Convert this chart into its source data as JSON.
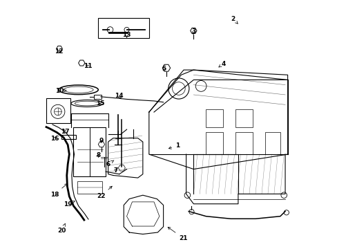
{
  "background_color": "#ffffff",
  "line_color": "#000000",
  "figure_width": 4.89,
  "figure_height": 3.6,
  "dpi": 100,
  "label_data": {
    "1": [
      0.535,
      0.415,
      0.49,
      0.4
    ],
    "2": [
      0.76,
      0.925,
      0.78,
      0.905
    ],
    "3": [
      0.6,
      0.875,
      0.598,
      0.862
    ],
    "4": [
      0.72,
      0.745,
      0.7,
      0.73
    ],
    "5": [
      0.48,
      0.725,
      0.473,
      0.71
    ],
    "6": [
      0.255,
      0.34,
      0.285,
      0.36
    ],
    "7": [
      0.285,
      0.315,
      0.295,
      0.33
    ],
    "8": [
      0.215,
      0.375,
      0.218,
      0.38
    ],
    "9": [
      0.228,
      0.435,
      0.224,
      0.418
    ],
    "10": [
      0.06,
      0.635,
      0.088,
      0.638
    ],
    "11": [
      0.172,
      0.735,
      0.158,
      0.745
    ],
    "12": [
      0.055,
      0.795,
      0.068,
      0.795
    ],
    "13": [
      0.33,
      0.862,
      0.33,
      0.848
    ],
    "14": [
      0.3,
      0.615,
      0.308,
      0.602
    ],
    "15": [
      0.222,
      0.585,
      0.218,
      0.585
    ],
    "16": [
      0.038,
      0.442,
      0.048,
      0.452
    ],
    "17": [
      0.082,
      0.472,
      0.072,
      0.48
    ],
    "18": [
      0.038,
      0.218,
      0.098,
      0.268
    ],
    "19": [
      0.092,
      0.178,
      0.122,
      0.192
    ],
    "20": [
      0.068,
      0.072,
      0.082,
      0.102
    ],
    "21": [
      0.558,
      0.042,
      0.488,
      0.092
    ],
    "22": [
      0.228,
      0.212,
      0.278,
      0.258
    ]
  }
}
